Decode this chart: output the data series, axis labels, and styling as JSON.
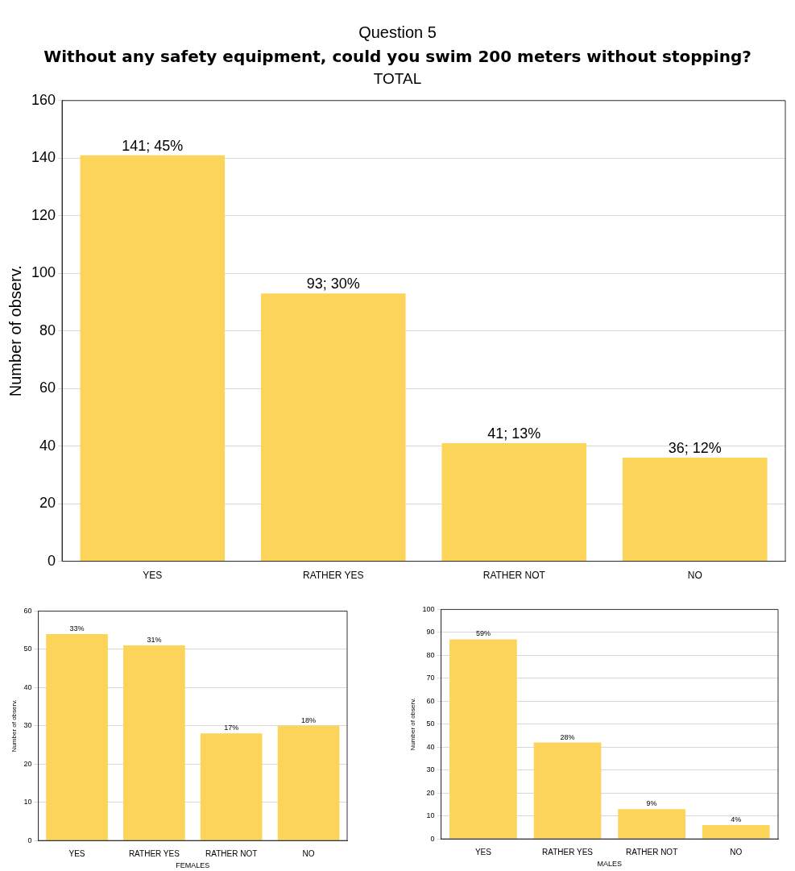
{
  "chart_data": [
    {
      "type": "bar",
      "title": "Question 5",
      "subtitle": "Without any safety equipment, could you swim 200 meters without stopping?",
      "annotations": [
        "TOTAL"
      ],
      "ylabel": "Number of observ.",
      "categories": [
        "YES",
        "RATHER YES",
        "RATHER NOT",
        "NO"
      ],
      "values": [
        141,
        93,
        41,
        36
      ],
      "value_labels": [
        "141; 45%",
        "93; 30%",
        "41; 13%",
        "36; 12%"
      ],
      "color": "#fdd45a",
      "ylim": [
        0,
        160
      ],
      "yticks": [
        0,
        20,
        40,
        60,
        80,
        100,
        120,
        140,
        160
      ],
      "grid": "y",
      "legend": false
    },
    {
      "type": "bar",
      "xlabel": "FEMALES",
      "ylabel": "Number of observ.",
      "categories": [
        "YES",
        "RATHER YES",
        "RATHER NOT",
        "NO"
      ],
      "values": [
        54,
        51,
        28,
        30
      ],
      "annotations": [
        {
          "text": "33%",
          "x": "YES",
          "y": 54
        },
        {
          "text": "31%",
          "x": "RATHER YES",
          "y": 51
        },
        {
          "text": "17%",
          "x": "RATHER NOT",
          "y": 28
        },
        {
          "text": "18%",
          "x": "NO",
          "y": 30
        }
      ],
      "color": "#fdd45a",
      "ylim": [
        0,
        60
      ],
      "yticks": [
        0,
        10,
        20,
        30,
        40,
        50,
        60
      ],
      "grid": "y",
      "legend": false
    },
    {
      "type": "bar",
      "xlabel": "MALES",
      "ylabel": "Number of observ.",
      "categories": [
        "YES",
        "RATHER YES",
        "RATHER NOT",
        "NO"
      ],
      "values": [
        87,
        42,
        13,
        6
      ],
      "annotations": [
        {
          "text": "59%",
          "x": "YES",
          "y": 87
        },
        {
          "text": "28%",
          "x": "RATHER YES",
          "y": 42
        },
        {
          "text": "9%",
          "x": "RATHER NOT",
          "y": 13
        },
        {
          "text": "4%",
          "x": "NO",
          "y": 6
        }
      ],
      "color": "#fdd45a",
      "ylim": [
        0,
        100
      ],
      "yticks": [
        0,
        10,
        20,
        30,
        40,
        50,
        60,
        70,
        80,
        90,
        100
      ],
      "grid": "y",
      "legend": false
    }
  ]
}
